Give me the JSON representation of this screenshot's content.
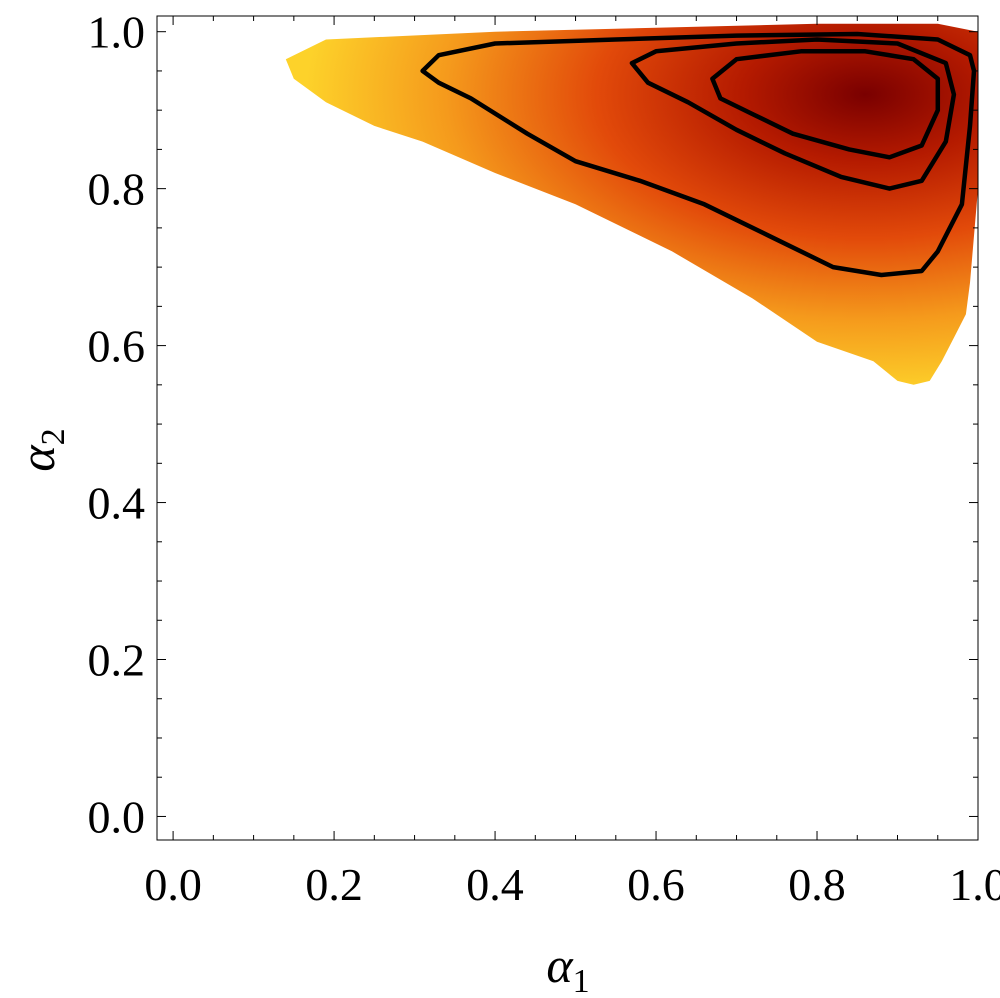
{
  "chart_data": {
    "type": "contour",
    "xlabel": {
      "symbol": "α",
      "subscript": "1"
    },
    "ylabel": {
      "symbol": "α",
      "subscript": "2"
    },
    "xlim": [
      -0.02,
      1.0
    ],
    "ylim": [
      -0.03,
      1.02
    ],
    "xticks": [
      "0.0",
      "0.2",
      "0.4",
      "0.6",
      "0.8",
      "1.0"
    ],
    "yticks": [
      "0.0",
      "0.2",
      "0.4",
      "0.6",
      "0.8",
      "1.0"
    ],
    "grid": false,
    "density_peak": {
      "x": 0.86,
      "y": 0.92
    },
    "colormap": [
      "#7a0000",
      "#b41a00",
      "#e24a0a",
      "#f59a1c",
      "#fdd22a"
    ],
    "contour_color": "#000000",
    "outer_region": [
      [
        0.14,
        0.965
      ],
      [
        0.19,
        0.99
      ],
      [
        0.4,
        1.0
      ],
      [
        0.6,
        1.005
      ],
      [
        0.8,
        1.01
      ],
      [
        0.95,
        1.01
      ],
      [
        1.0,
        1.0
      ],
      [
        1.0,
        0.8
      ],
      [
        0.99,
        0.68
      ],
      [
        0.985,
        0.64
      ],
      [
        0.97,
        0.61
      ],
      [
        0.955,
        0.58
      ],
      [
        0.94,
        0.555
      ],
      [
        0.92,
        0.55
      ],
      [
        0.9,
        0.555
      ],
      [
        0.87,
        0.58
      ],
      [
        0.8,
        0.605
      ],
      [
        0.72,
        0.66
      ],
      [
        0.62,
        0.72
      ],
      [
        0.5,
        0.78
      ],
      [
        0.4,
        0.82
      ],
      [
        0.31,
        0.86
      ],
      [
        0.25,
        0.88
      ],
      [
        0.19,
        0.91
      ],
      [
        0.15,
        0.94
      ]
    ],
    "contours": [
      [
        [
          0.31,
          0.95
        ],
        [
          0.33,
          0.97
        ],
        [
          0.4,
          0.985
        ],
        [
          0.55,
          0.99
        ],
        [
          0.7,
          0.995
        ],
        [
          0.85,
          0.997
        ],
        [
          0.95,
          0.99
        ],
        [
          0.99,
          0.97
        ],
        [
          0.995,
          0.95
        ],
        [
          0.99,
          0.88
        ],
        [
          0.98,
          0.78
        ],
        [
          0.95,
          0.72
        ],
        [
          0.93,
          0.695
        ],
        [
          0.88,
          0.69
        ],
        [
          0.82,
          0.7
        ],
        [
          0.74,
          0.74
        ],
        [
          0.66,
          0.78
        ],
        [
          0.58,
          0.81
        ],
        [
          0.5,
          0.835
        ],
        [
          0.44,
          0.87
        ],
        [
          0.37,
          0.915
        ],
        [
          0.33,
          0.935
        ]
      ],
      [
        [
          0.57,
          0.96
        ],
        [
          0.6,
          0.975
        ],
        [
          0.7,
          0.985
        ],
        [
          0.8,
          0.99
        ],
        [
          0.9,
          0.985
        ],
        [
          0.96,
          0.96
        ],
        [
          0.97,
          0.92
        ],
        [
          0.96,
          0.86
        ],
        [
          0.93,
          0.81
        ],
        [
          0.89,
          0.8
        ],
        [
          0.83,
          0.815
        ],
        [
          0.76,
          0.845
        ],
        [
          0.7,
          0.875
        ],
        [
          0.64,
          0.91
        ],
        [
          0.59,
          0.935
        ]
      ],
      [
        [
          0.67,
          0.94
        ],
        [
          0.7,
          0.965
        ],
        [
          0.78,
          0.975
        ],
        [
          0.86,
          0.975
        ],
        [
          0.92,
          0.965
        ],
        [
          0.95,
          0.94
        ],
        [
          0.95,
          0.9
        ],
        [
          0.93,
          0.855
        ],
        [
          0.89,
          0.84
        ],
        [
          0.84,
          0.85
        ],
        [
          0.77,
          0.87
        ],
        [
          0.72,
          0.895
        ],
        [
          0.68,
          0.915
        ]
      ]
    ]
  }
}
